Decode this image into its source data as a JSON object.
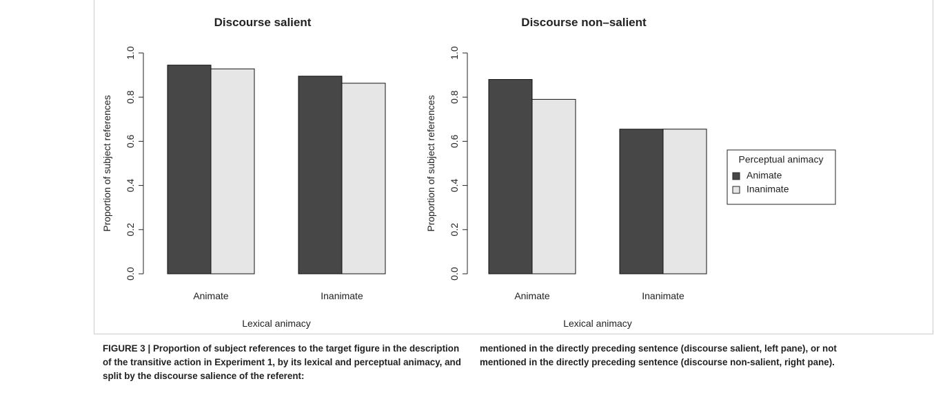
{
  "chart_data": [
    {
      "type": "bar",
      "title": "Discourse salient",
      "xlabel": "Lexical animacy",
      "ylabel": "Proportion of subject references",
      "categories": [
        "Animate",
        "Inanimate"
      ],
      "series": [
        {
          "color": "#474747",
          "values": [
            0.945,
            0.895
          ]
        },
        {
          "color": "#e6e6e6",
          "values": [
            0.928,
            0.863
          ]
        }
      ],
      "ylim": [
        0,
        1
      ],
      "yticks": [
        {
          "value": 0,
          "label": "0.0"
        },
        {
          "value": 0.2,
          "label": "0.2"
        },
        {
          "value": 0.4,
          "label": "0.4"
        },
        {
          "value": 0.6,
          "label": "0.6"
        },
        {
          "value": 0.8,
          "label": "0.8"
        },
        {
          "value": 1,
          "label": "1.0"
        }
      ]
    },
    {
      "type": "bar",
      "title": "Discourse non–salient",
      "xlabel": "Lexical animacy",
      "ylabel": "Proportion of subject references",
      "categories": [
        "Animate",
        "Inanimate"
      ],
      "series": [
        {
          "color": "#474747",
          "values": [
            0.88,
            0.655
          ]
        },
        {
          "color": "#e6e6e6",
          "values": [
            0.79,
            0.655
          ]
        }
      ],
      "ylim": [
        0,
        1
      ],
      "yticks": [
        {
          "value": 0,
          "label": "0.0"
        },
        {
          "value": 0.2,
          "label": "0.2"
        },
        {
          "value": 0.4,
          "label": "0.4"
        },
        {
          "value": 0.6,
          "label": "0.6"
        },
        {
          "value": 0.8,
          "label": "0.8"
        },
        {
          "value": 1,
          "label": "1.0"
        }
      ]
    }
  ],
  "legend": {
    "title": "Perceptual animacy",
    "entries": [
      {
        "name": "Animate",
        "color": "#474747"
      },
      {
        "name": "Inanimate",
        "color": "#e6e6e6"
      }
    ]
  },
  "caption": [
    "FIGURE 3 | Proportion of subject references to the target figure in the description of the transitive action in Experiment 1, by its lexical and perceptual animacy, and split by the discourse salience of the referent:",
    "mentioned in the directly preceding sentence (discourse salient, left pane), or not mentioned in the directly preceding sentence (discourse non-salient, right pane)."
  ]
}
